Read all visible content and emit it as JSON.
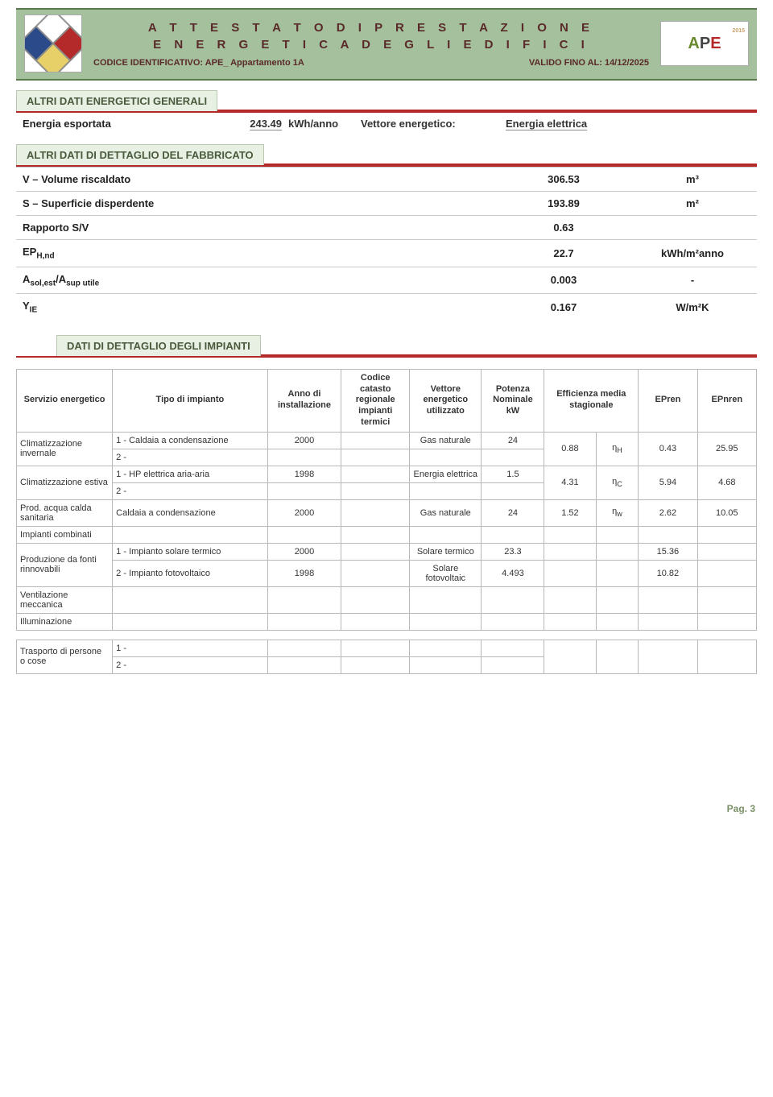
{
  "header": {
    "title_line1": "A T T E S T A T O   D I   P R E S T A Z I O N E",
    "title_line2": "E N E R G E T I C A   D E G L I   E D I F I C I",
    "code_label": "CODICE IDENTIFICATIVO: APE_ Appartamento 1A",
    "valid_label": "VALIDO FINO AL: 14/12/2025",
    "logo_right_text_a": "A",
    "logo_right_text_p": "P",
    "logo_right_text_e": "E",
    "logo_right_sub": "2015"
  },
  "colors": {
    "header_bg": "#a5c09c",
    "tab_bg": "#e8f0e4",
    "accent_red": "#b42a2a",
    "border_gray": "#b8b8b8"
  },
  "sec_general": {
    "title": "ALTRI DATI ENERGETICI GENERALI",
    "row1_label": "Energia esportata",
    "row1_value": "243.49",
    "row1_unit": "kWh/anno",
    "row1_vec_label": "Vettore energetico:",
    "row1_vec_value": "Energia elettrica"
  },
  "sec_fab": {
    "title": "ALTRI DATI DI DETTAGLIO DEL FABBRICATO",
    "rows": [
      {
        "label": "V – Volume riscaldato",
        "value": "306.53",
        "unit": "m³"
      },
      {
        "label": "S – Superficie disperdente",
        "value": "193.89",
        "unit": "m²"
      },
      {
        "label": "Rapporto S/V",
        "value": "0.63",
        "unit": ""
      },
      {
        "label_html": "EP_Hnd",
        "label": "EPH,nd",
        "value": "22.7",
        "unit": "kWh/m²anno"
      },
      {
        "label_html": "AsolAsup",
        "label": "Asol,est/Asup utile",
        "value": "0.003",
        "unit": "-"
      },
      {
        "label_html": "YIE",
        "label": "YIE",
        "value": "0.167",
        "unit": "W/m²K"
      }
    ]
  },
  "sec_imp": {
    "title": "DATI DI DETTAGLIO DEGLI IMPIANTI",
    "headers": {
      "c0": "Servizio energetico",
      "c1": "Tipo di impianto",
      "c2": "Anno di installazione",
      "c3": "Codice catasto regionale impianti termici",
      "c4": "Vettore energetico utilizzato",
      "c5": "Potenza Nominale kW",
      "c6": "Efficienza media stagionale",
      "c7": "EPren",
      "c8": "EPnren"
    },
    "rows": [
      {
        "service": "Climatizzazione invernale",
        "subrows": [
          {
            "type": "1 - Caldaia a condensazione",
            "anno": "2000",
            "cat": "",
            "vet": "Gas naturale",
            "pot": "24"
          },
          {
            "type": "2 -",
            "anno": "",
            "cat": "",
            "vet": "",
            "pot": ""
          }
        ],
        "eff_val": "0.88",
        "eff_sym": "ηH",
        "epren": "0.43",
        "epnren": "25.95"
      },
      {
        "service": "Climatizzazione estiva",
        "subrows": [
          {
            "type": "1 - HP elettrica aria-aria",
            "anno": "1998",
            "cat": "",
            "vet": "Energia elettrica",
            "pot": "1.5"
          },
          {
            "type": "2 -",
            "anno": "",
            "cat": "",
            "vet": "",
            "pot": ""
          }
        ],
        "eff_val": "4.31",
        "eff_sym": "ηC",
        "epren": "5.94",
        "epnren": "4.68"
      },
      {
        "service": "Prod. acqua calda sanitaria",
        "subrows": [
          {
            "type": "Caldaia a condensazione",
            "anno": "2000",
            "cat": "",
            "vet": "Gas naturale",
            "pot": "24"
          }
        ],
        "eff_val": "1.52",
        "eff_sym": "ηw",
        "epren": "2.62",
        "epnren": "10.05"
      },
      {
        "service": "Impianti combinati",
        "subrows": [
          {
            "type": "",
            "anno": "",
            "cat": "",
            "vet": "",
            "pot": ""
          }
        ],
        "eff_val": "",
        "eff_sym": "",
        "epren": "",
        "epnren": ""
      },
      {
        "service": "Produzione da fonti rinnovabili",
        "subrows": [
          {
            "type": "1 - Impianto solare termico",
            "anno": "2000",
            "cat": "",
            "vet": "Solare termico",
            "pot": "23.3",
            "eff_val": "",
            "eff_sym": "",
            "epren": "15.36",
            "epnren": ""
          },
          {
            "type": "2 - Impianto fotovoltaico",
            "anno": "1998",
            "cat": "",
            "vet": "Solare fotovoltaic",
            "pot": "4.493",
            "eff_val": "",
            "eff_sym": "",
            "epren": "10.82",
            "epnren": ""
          }
        ],
        "split_eff": true
      },
      {
        "service": "Ventilazione meccanica",
        "subrows": [
          {
            "type": "",
            "anno": "",
            "cat": "",
            "vet": "",
            "pot": ""
          }
        ],
        "eff_val": "",
        "eff_sym": "",
        "epren": "",
        "epnren": ""
      },
      {
        "service": "Illuminazione",
        "subrows": [
          {
            "type": "",
            "anno": "",
            "cat": "",
            "vet": "",
            "pot": ""
          }
        ],
        "eff_val": "",
        "eff_sym": "",
        "epren": "",
        "epnren": ""
      }
    ],
    "last_row": {
      "service": "Trasporto di persone o cose",
      "subrows": [
        {
          "type": "1 -",
          "anno": "",
          "cat": "",
          "vet": "",
          "pot": ""
        },
        {
          "type": "2 -",
          "anno": "",
          "cat": "",
          "vet": "",
          "pot": ""
        }
      ],
      "eff_val": "",
      "eff_sym": "",
      "epren": "",
      "epnren": ""
    }
  },
  "page_number": "Pag. 3"
}
